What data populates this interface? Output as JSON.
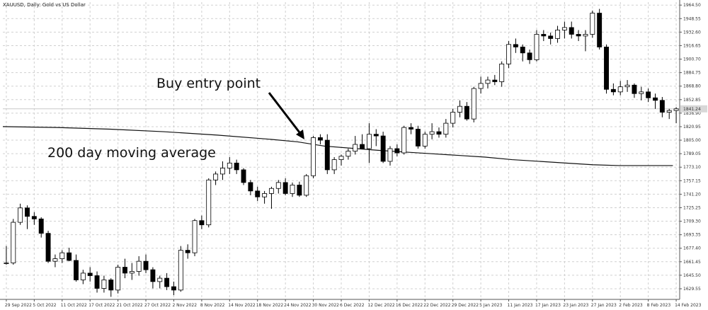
{
  "chart_data": {
    "type": "candlestick",
    "title": "XAUUSD, Daily:  Gold vs US Dollar",
    "price_label": "1841.24",
    "ylim": [
      1617,
      1968
    ],
    "yticks": [
      "1964.50",
      "1948.55",
      "1932.60",
      "1916.65",
      "1900.70",
      "1884.75",
      "1868.80",
      "1852.85",
      "1836.90",
      "1820.95",
      "1805.00",
      "1789.05",
      "1773.10",
      "1757.15",
      "1741.20",
      "1725.25",
      "1709.30",
      "1693.35",
      "1677.40",
      "1661.45",
      "1645.50",
      "1629.55"
    ],
    "xticks": [
      "29 Sep 2022",
      "5 Oct 2022",
      "11 Oct 2022",
      "17 Oct 2022",
      "21 Oct 2022",
      "27 Oct 2022",
      "2 Nov 2022",
      "8 Nov 2022",
      "14 Nov 2022",
      "18 Nov 2022",
      "24 Nov 2022",
      "30 Nov 2022",
      "6 Dec 2022",
      "12 Dec 2022",
      "16 Dec 2022",
      "22 Dec 2022",
      "29 Dec 2022",
      "5 Jan 2023",
      "11 Jan 2023",
      "17 Jan 2023",
      "23 Jan 2023",
      "27 Jan 2023",
      "2 Feb 2023",
      "8 Feb 2023",
      "14 Feb 2023"
    ],
    "candles": [
      {
        "o": 1660,
        "h": 1680,
        "l": 1658,
        "c": 1660
      },
      {
        "o": 1660,
        "h": 1712,
        "l": 1658,
        "c": 1708
      },
      {
        "o": 1708,
        "h": 1730,
        "l": 1705,
        "c": 1725
      },
      {
        "o": 1725,
        "h": 1728,
        "l": 1700,
        "c": 1715
      },
      {
        "o": 1715,
        "h": 1720,
        "l": 1705,
        "c": 1712
      },
      {
        "o": 1712,
        "h": 1714,
        "l": 1690,
        "c": 1695
      },
      {
        "o": 1695,
        "h": 1698,
        "l": 1660,
        "c": 1662
      },
      {
        "o": 1662,
        "h": 1670,
        "l": 1655,
        "c": 1665
      },
      {
        "o": 1665,
        "h": 1675,
        "l": 1660,
        "c": 1672
      },
      {
        "o": 1672,
        "h": 1678,
        "l": 1662,
        "c": 1663
      },
      {
        "o": 1663,
        "h": 1670,
        "l": 1638,
        "c": 1640
      },
      {
        "o": 1640,
        "h": 1652,
        "l": 1635,
        "c": 1648
      },
      {
        "o": 1648,
        "h": 1655,
        "l": 1638,
        "c": 1645
      },
      {
        "o": 1645,
        "h": 1650,
        "l": 1625,
        "c": 1630
      },
      {
        "o": 1630,
        "h": 1645,
        "l": 1625,
        "c": 1640
      },
      {
        "o": 1640,
        "h": 1642,
        "l": 1620,
        "c": 1628
      },
      {
        "o": 1628,
        "h": 1658,
        "l": 1624,
        "c": 1655
      },
      {
        "o": 1655,
        "h": 1665,
        "l": 1642,
        "c": 1648
      },
      {
        "o": 1648,
        "h": 1660,
        "l": 1640,
        "c": 1650
      },
      {
        "o": 1650,
        "h": 1668,
        "l": 1645,
        "c": 1662
      },
      {
        "o": 1662,
        "h": 1670,
        "l": 1648,
        "c": 1652
      },
      {
        "o": 1652,
        "h": 1655,
        "l": 1630,
        "c": 1638
      },
      {
        "o": 1638,
        "h": 1645,
        "l": 1630,
        "c": 1642
      },
      {
        "o": 1642,
        "h": 1648,
        "l": 1628,
        "c": 1632
      },
      {
        "o": 1632,
        "h": 1638,
        "l": 1622,
        "c": 1628
      },
      {
        "o": 1628,
        "h": 1680,
        "l": 1626,
        "c": 1675
      },
      {
        "o": 1675,
        "h": 1682,
        "l": 1665,
        "c": 1672
      },
      {
        "o": 1672,
        "h": 1712,
        "l": 1668,
        "c": 1710
      },
      {
        "o": 1710,
        "h": 1716,
        "l": 1700,
        "c": 1705
      },
      {
        "o": 1705,
        "h": 1760,
        "l": 1702,
        "c": 1758
      },
      {
        "o": 1758,
        "h": 1768,
        "l": 1752,
        "c": 1765
      },
      {
        "o": 1765,
        "h": 1780,
        "l": 1758,
        "c": 1772
      },
      {
        "o": 1772,
        "h": 1785,
        "l": 1765,
        "c": 1778
      },
      {
        "o": 1778,
        "h": 1782,
        "l": 1765,
        "c": 1770
      },
      {
        "o": 1770,
        "h": 1772,
        "l": 1752,
        "c": 1755
      },
      {
        "o": 1755,
        "h": 1758,
        "l": 1740,
        "c": 1745
      },
      {
        "o": 1745,
        "h": 1750,
        "l": 1733,
        "c": 1738
      },
      {
        "o": 1738,
        "h": 1745,
        "l": 1730,
        "c": 1742
      },
      {
        "o": 1742,
        "h": 1750,
        "l": 1724,
        "c": 1748
      },
      {
        "o": 1748,
        "h": 1758,
        "l": 1742,
        "c": 1755
      },
      {
        "o": 1755,
        "h": 1760,
        "l": 1740,
        "c": 1742
      },
      {
        "o": 1742,
        "h": 1755,
        "l": 1738,
        "c": 1752
      },
      {
        "o": 1752,
        "h": 1756,
        "l": 1738,
        "c": 1740
      },
      {
        "o": 1740,
        "h": 1765,
        "l": 1738,
        "c": 1763
      },
      {
        "o": 1763,
        "h": 1810,
        "l": 1760,
        "c": 1808
      },
      {
        "o": 1808,
        "h": 1812,
        "l": 1800,
        "c": 1805
      },
      {
        "o": 1805,
        "h": 1812,
        "l": 1765,
        "c": 1770
      },
      {
        "o": 1770,
        "h": 1785,
        "l": 1765,
        "c": 1782
      },
      {
        "o": 1782,
        "h": 1788,
        "l": 1775,
        "c": 1786
      },
      {
        "o": 1786,
        "h": 1795,
        "l": 1782,
        "c": 1792
      },
      {
        "o": 1792,
        "h": 1810,
        "l": 1788,
        "c": 1800
      },
      {
        "o": 1800,
        "h": 1812,
        "l": 1796,
        "c": 1795
      },
      {
        "o": 1795,
        "h": 1825,
        "l": 1778,
        "c": 1812
      },
      {
        "o": 1812,
        "h": 1818,
        "l": 1798,
        "c": 1810
      },
      {
        "o": 1810,
        "h": 1815,
        "l": 1778,
        "c": 1780
      },
      {
        "o": 1780,
        "h": 1798,
        "l": 1775,
        "c": 1795
      },
      {
        "o": 1795,
        "h": 1800,
        "l": 1786,
        "c": 1790
      },
      {
        "o": 1790,
        "h": 1822,
        "l": 1788,
        "c": 1820
      },
      {
        "o": 1820,
        "h": 1825,
        "l": 1812,
        "c": 1818
      },
      {
        "o": 1818,
        "h": 1822,
        "l": 1795,
        "c": 1798
      },
      {
        "o": 1798,
        "h": 1815,
        "l": 1795,
        "c": 1812
      },
      {
        "o": 1812,
        "h": 1825,
        "l": 1806,
        "c": 1815
      },
      {
        "o": 1815,
        "h": 1820,
        "l": 1808,
        "c": 1812
      },
      {
        "o": 1812,
        "h": 1830,
        "l": 1808,
        "c": 1825
      },
      {
        "o": 1825,
        "h": 1842,
        "l": 1820,
        "c": 1838
      },
      {
        "o": 1838,
        "h": 1852,
        "l": 1832,
        "c": 1845
      },
      {
        "o": 1845,
        "h": 1850,
        "l": 1828,
        "c": 1830
      },
      {
        "o": 1830,
        "h": 1868,
        "l": 1826,
        "c": 1866
      },
      {
        "o": 1866,
        "h": 1880,
        "l": 1860,
        "c": 1872
      },
      {
        "o": 1872,
        "h": 1880,
        "l": 1866,
        "c": 1876
      },
      {
        "o": 1876,
        "h": 1882,
        "l": 1870,
        "c": 1874
      },
      {
        "o": 1874,
        "h": 1898,
        "l": 1868,
        "c": 1895
      },
      {
        "o": 1895,
        "h": 1922,
        "l": 1890,
        "c": 1918
      },
      {
        "o": 1918,
        "h": 1925,
        "l": 1908,
        "c": 1915
      },
      {
        "o": 1915,
        "h": 1918,
        "l": 1898,
        "c": 1908
      },
      {
        "o": 1908,
        "h": 1912,
        "l": 1895,
        "c": 1900
      },
      {
        "o": 1900,
        "h": 1935,
        "l": 1898,
        "c": 1930
      },
      {
        "o": 1930,
        "h": 1935,
        "l": 1922,
        "c": 1928
      },
      {
        "o": 1928,
        "h": 1932,
        "l": 1918,
        "c": 1925
      },
      {
        "o": 1925,
        "h": 1940,
        "l": 1920,
        "c": 1935
      },
      {
        "o": 1935,
        "h": 1945,
        "l": 1925,
        "c": 1938
      },
      {
        "o": 1938,
        "h": 1945,
        "l": 1925,
        "c": 1930
      },
      {
        "o": 1930,
        "h": 1935,
        "l": 1922,
        "c": 1928
      },
      {
        "o": 1928,
        "h": 1935,
        "l": 1910,
        "c": 1930
      },
      {
        "o": 1930,
        "h": 1958,
        "l": 1926,
        "c": 1955
      },
      {
        "o": 1955,
        "h": 1960,
        "l": 1912,
        "c": 1915
      },
      {
        "o": 1915,
        "h": 1918,
        "l": 1860,
        "c": 1865
      },
      {
        "o": 1865,
        "h": 1872,
        "l": 1858,
        "c": 1862
      },
      {
        "o": 1862,
        "h": 1875,
        "l": 1858,
        "c": 1868
      },
      {
        "o": 1868,
        "h": 1876,
        "l": 1862,
        "c": 1870
      },
      {
        "o": 1870,
        "h": 1872,
        "l": 1855,
        "c": 1860
      },
      {
        "o": 1860,
        "h": 1868,
        "l": 1852,
        "c": 1862
      },
      {
        "o": 1862,
        "h": 1866,
        "l": 1850,
        "c": 1855
      },
      {
        "o": 1855,
        "h": 1860,
        "l": 1842,
        "c": 1852
      },
      {
        "o": 1852,
        "h": 1856,
        "l": 1832,
        "c": 1838
      },
      {
        "o": 1838,
        "h": 1842,
        "l": 1830,
        "c": 1840
      },
      {
        "o": 1840,
        "h": 1844,
        "l": 1825,
        "c": 1842
      }
    ],
    "ma200": [
      [
        0,
        1821
      ],
      [
        20,
        1820
      ],
      [
        40,
        1818
      ],
      [
        60,
        1815
      ],
      [
        80,
        1811
      ],
      [
        100,
        1806
      ],
      [
        110,
        1803
      ],
      [
        120,
        1798
      ],
      [
        132,
        1795
      ],
      [
        140,
        1793
      ],
      [
        150,
        1791
      ],
      [
        160,
        1789
      ],
      [
        170,
        1787
      ],
      [
        180,
        1785
      ],
      [
        190,
        1782
      ],
      [
        200,
        1780
      ],
      [
        210,
        1778
      ],
      [
        220,
        1776
      ],
      [
        230,
        1775
      ],
      [
        240,
        1775
      ],
      [
        250,
        1775
      ]
    ],
    "annotations": [
      {
        "text": "Buy entry point"
      },
      {
        "text": "200 day moving average"
      }
    ]
  }
}
